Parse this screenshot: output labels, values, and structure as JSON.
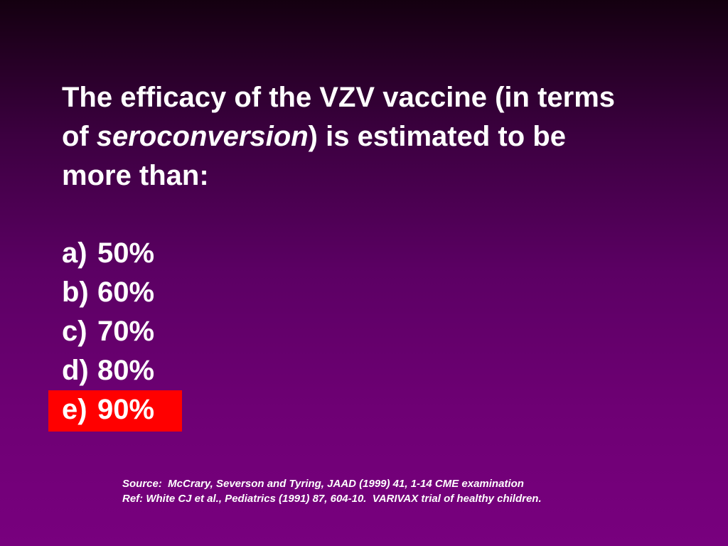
{
  "slide": {
    "question": {
      "line1": "The efficacy of the VZV vaccine (in terms",
      "line2_before": "of",
      "line2_emphasis": "seroconversion",
      "line2_after": ") is estimated to be",
      "line3": "more than:"
    },
    "options": [
      {
        "letter": "a)",
        "text": "50%"
      },
      {
        "letter": "b)",
        "text": "60%"
      },
      {
        "letter": "c)",
        "text": "70%"
      },
      {
        "letter": "d)",
        "text": "80%"
      },
      {
        "letter": "e)",
        "text": "90%",
        "highlighted": true
      }
    ],
    "source": {
      "line1": "Source:  McCrary, Severson and Tyring, JAAD (1999) 41, 1-14 CME examination",
      "line2": "Ref: White CJ et al., Pediatrics (1991) 87, 604-10.  VARIVAX trial of healthy children."
    }
  }
}
